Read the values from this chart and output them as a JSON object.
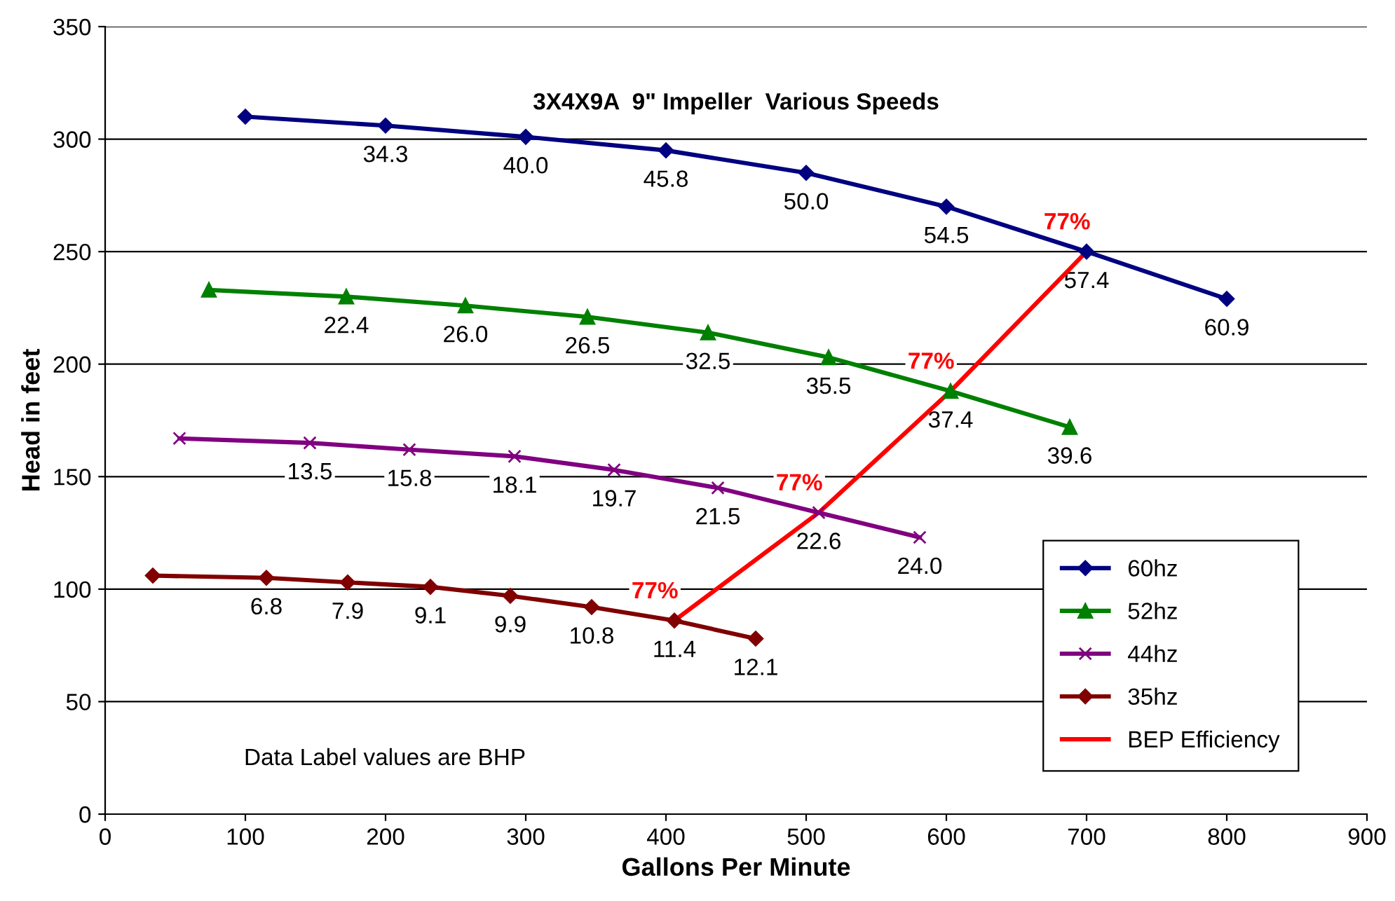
{
  "chart_data": {
    "type": "line",
    "title": "3X4X9A  9\" Impeller  Various Speeds",
    "xlabel": "Gallons Per Minute",
    "ylabel": "Head in feet",
    "xlim": [
      0,
      900
    ],
    "xticks": [
      0,
      100,
      200,
      300,
      400,
      500,
      600,
      700,
      800,
      900
    ],
    "ylim": [
      0,
      350
    ],
    "yticks": [
      0,
      50,
      100,
      150,
      200,
      250,
      300,
      350
    ],
    "grid": "y",
    "legend": "bottom right",
    "line_style": "solid",
    "annotations": [
      "Data Label values are BHP",
      {
        "text": "34.3",
        "x": 200,
        "y": 306
      },
      {
        "text": "40.0",
        "x": 300,
        "y": 301
      },
      {
        "text": "45.8",
        "x": 400,
        "y": 295
      },
      {
        "text": "50.0",
        "x": 500,
        "y": 285
      },
      {
        "text": "54.5",
        "x": 600,
        "y": 270
      },
      {
        "text": "57.4",
        "x": 700,
        "y": 250
      },
      {
        "text": "60.9",
        "x": 800,
        "y": 229
      },
      {
        "text": "22.4",
        "x": 172,
        "y": 230
      },
      {
        "text": "26.0",
        "x": 257,
        "y": 226
      },
      {
        "text": "26.5",
        "x": 344,
        "y": 221
      },
      {
        "text": "32.5",
        "x": 430,
        "y": 214
      },
      {
        "text": "35.5",
        "x": 516,
        "y": 203
      },
      {
        "text": "37.4",
        "x": 603,
        "y": 188
      },
      {
        "text": "39.6",
        "x": 688,
        "y": 172
      },
      {
        "text": "13.5",
        "x": 146,
        "y": 165
      },
      {
        "text": "15.8",
        "x": 217,
        "y": 162
      },
      {
        "text": "18.1",
        "x": 292,
        "y": 159
      },
      {
        "text": "19.7",
        "x": 363,
        "y": 153
      },
      {
        "text": "21.5",
        "x": 437,
        "y": 145
      },
      {
        "text": "22.6",
        "x": 509,
        "y": 134
      },
      {
        "text": "24.0",
        "x": 581,
        "y": 123
      },
      {
        "text": "6.8",
        "x": 115,
        "y": 105
      },
      {
        "text": "7.9",
        "x": 173,
        "y": 103
      },
      {
        "text": "9.1",
        "x": 232,
        "y": 101
      },
      {
        "text": "9.9",
        "x": 289,
        "y": 97
      },
      {
        "text": "10.8",
        "x": 347,
        "y": 92
      },
      {
        "text": "11.4",
        "x": 406,
        "y": 86
      },
      {
        "text": "12.1",
        "x": 464,
        "y": 78
      },
      {
        "text": "77%",
        "x": 406,
        "y": 86
      },
      {
        "text": "77%",
        "x": 509,
        "y": 134
      },
      {
        "text": "77%",
        "x": 603,
        "y": 188
      },
      {
        "text": "77%",
        "x": 700,
        "y": 250
      }
    ],
    "series": [
      {
        "name": "60hz",
        "color": "#000080",
        "marker": "diamond",
        "x": [
          100,
          200,
          300,
          400,
          500,
          600,
          700,
          800
        ],
        "values": [
          310,
          306,
          301,
          295,
          285,
          270,
          250,
          229
        ]
      },
      {
        "name": "52hz",
        "color": "#008000",
        "marker": "triangle",
        "x": [
          74,
          172,
          257,
          344,
          430,
          516,
          603,
          688
        ],
        "values": [
          233,
          230,
          226,
          221,
          214,
          203,
          188,
          172
        ]
      },
      {
        "name": "44hz",
        "color": "#800080",
        "marker": "cross",
        "x": [
          53,
          146,
          217,
          292,
          363,
          437,
          509,
          581
        ],
        "values": [
          167,
          165,
          162,
          159,
          153,
          145,
          134,
          123
        ]
      },
      {
        "name": "35hz",
        "color": "#800000",
        "marker": "diamond",
        "x": [
          34,
          115,
          173,
          232,
          289,
          347,
          406,
          464
        ],
        "values": [
          106,
          105,
          103,
          101,
          97,
          92,
          86,
          78
        ]
      },
      {
        "name": "BEP Efficiency",
        "color": "#ff0000",
        "marker": "none",
        "x": [
          406,
          509,
          603,
          700
        ],
        "values": [
          86,
          134,
          188,
          250
        ]
      }
    ]
  }
}
